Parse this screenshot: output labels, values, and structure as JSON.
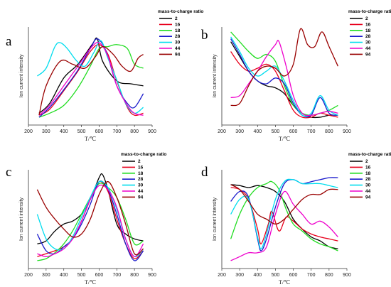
{
  "chart_data": [
    {
      "type": "line",
      "panel_label": "a",
      "xlabel": "T/℃",
      "ylabel": "Ion current intensity",
      "xlim": [
        200,
        900
      ],
      "ylim": [
        0,
        1
      ],
      "xticks": [
        200,
        300,
        400,
        500,
        600,
        700,
        800,
        900
      ],
      "legend_title": "mass-to-charge ratio",
      "series": [
        {
          "name": "2",
          "color": "#000000",
          "x": [
            260,
            320,
            400,
            480,
            560,
            590,
            620,
            700,
            780,
            850
          ],
          "y": [
            0.12,
            0.22,
            0.48,
            0.62,
            0.82,
            0.88,
            0.65,
            0.45,
            0.42,
            0.4
          ]
        },
        {
          "name": "16",
          "color": "#e8001c",
          "x": [
            260,
            320,
            400,
            480,
            550,
            600,
            650,
            700,
            760,
            800,
            850
          ],
          "y": [
            0.1,
            0.16,
            0.35,
            0.55,
            0.75,
            0.82,
            0.72,
            0.45,
            0.18,
            0.1,
            0.12
          ]
        },
        {
          "name": "18",
          "color": "#22dd22",
          "x": [
            260,
            320,
            400,
            480,
            550,
            600,
            650,
            700,
            760,
            800,
            850
          ],
          "y": [
            0.08,
            0.12,
            0.2,
            0.38,
            0.6,
            0.78,
            0.8,
            0.82,
            0.78,
            0.62,
            0.58
          ]
        },
        {
          "name": "28",
          "color": "#1a1acc",
          "x": [
            260,
            320,
            400,
            480,
            550,
            590,
            640,
            700,
            760,
            800,
            850
          ],
          "y": [
            0.08,
            0.18,
            0.36,
            0.56,
            0.78,
            0.88,
            0.75,
            0.4,
            0.22,
            0.18,
            0.32
          ]
        },
        {
          "name": "30",
          "color": "#00ddee",
          "x": [
            250,
            300,
            350,
            380,
            420,
            470,
            520,
            570,
            610,
            650,
            700,
            750,
            800,
            850
          ],
          "y": [
            0.5,
            0.58,
            0.8,
            0.84,
            0.78,
            0.66,
            0.6,
            0.74,
            0.86,
            0.68,
            0.46,
            0.22,
            0.12,
            0.18
          ]
        },
        {
          "name": "44",
          "color": "#ee00cc",
          "x": [
            260,
            320,
            400,
            480,
            550,
            600,
            650,
            700,
            760,
            800,
            850
          ],
          "y": [
            0.1,
            0.2,
            0.4,
            0.6,
            0.78,
            0.84,
            0.7,
            0.4,
            0.2,
            0.12,
            0.1
          ]
        },
        {
          "name": "94",
          "color": "#990000",
          "x": [
            260,
            300,
            380,
            450,
            520,
            580,
            620,
            680,
            730,
            780,
            820,
            850
          ],
          "y": [
            0.1,
            0.4,
            0.65,
            0.62,
            0.58,
            0.7,
            0.8,
            0.72,
            0.6,
            0.55,
            0.68,
            0.72
          ]
        }
      ]
    },
    {
      "type": "line",
      "panel_label": "b",
      "xlabel": "T/℃",
      "ylabel": "Ion current intensity",
      "xlim": [
        200,
        900
      ],
      "ylim": [
        0,
        1
      ],
      "xticks": [
        200,
        300,
        400,
        500,
        600,
        700,
        800,
        900
      ],
      "legend_title": "mass-to-charge ratio",
      "series": [
        {
          "name": "2",
          "color": "#000000",
          "x": [
            250,
            300,
            350,
            400,
            450,
            500,
            550,
            600,
            650,
            700,
            750,
            800,
            850
          ],
          "y": [
            0.85,
            0.7,
            0.55,
            0.45,
            0.4,
            0.38,
            0.32,
            0.2,
            0.12,
            0.08,
            0.08,
            0.1,
            0.1
          ]
        },
        {
          "name": "16",
          "color": "#e8001c",
          "x": [
            250,
            300,
            350,
            400,
            450,
            500,
            550,
            600,
            650,
            700,
            750,
            800,
            850
          ],
          "y": [
            0.75,
            0.62,
            0.55,
            0.58,
            0.62,
            0.55,
            0.35,
            0.15,
            0.08,
            0.08,
            0.12,
            0.1,
            0.08
          ]
        },
        {
          "name": "18",
          "color": "#22dd22",
          "x": [
            250,
            300,
            350,
            400,
            450,
            500,
            550,
            600,
            650,
            700,
            750,
            800,
            850
          ],
          "y": [
            0.95,
            0.85,
            0.75,
            0.68,
            0.72,
            0.65,
            0.4,
            0.2,
            0.12,
            0.1,
            0.12,
            0.15,
            0.2
          ]
        },
        {
          "name": "28",
          "color": "#1a1acc",
          "x": [
            250,
            300,
            350,
            400,
            450,
            500,
            550,
            600,
            650,
            700,
            750,
            800,
            850
          ],
          "y": [
            0.88,
            0.72,
            0.55,
            0.45,
            0.42,
            0.48,
            0.42,
            0.22,
            0.1,
            0.1,
            0.28,
            0.12,
            0.1
          ]
        },
        {
          "name": "30",
          "color": "#00ddee",
          "x": [
            250,
            300,
            350,
            400,
            450,
            500,
            550,
            600,
            650,
            700,
            750,
            800,
            850
          ],
          "y": [
            0.9,
            0.75,
            0.58,
            0.5,
            0.55,
            0.6,
            0.45,
            0.25,
            0.1,
            0.12,
            0.3,
            0.15,
            0.1
          ]
        },
        {
          "name": "44",
          "color": "#ee00cc",
          "x": [
            250,
            300,
            350,
            400,
            450,
            500,
            520,
            560,
            600,
            650,
            700,
            750,
            800,
            850
          ],
          "y": [
            0.28,
            0.3,
            0.42,
            0.55,
            0.7,
            0.82,
            0.85,
            0.6,
            0.3,
            0.12,
            0.1,
            0.12,
            0.14,
            0.12
          ]
        },
        {
          "name": "94",
          "color": "#990000",
          "x": [
            250,
            300,
            350,
            400,
            450,
            500,
            550,
            600,
            640,
            680,
            720,
            760,
            800,
            850
          ],
          "y": [
            0.2,
            0.22,
            0.4,
            0.55,
            0.6,
            0.58,
            0.5,
            0.62,
            0.98,
            0.82,
            0.8,
            0.95,
            0.8,
            0.6
          ]
        }
      ]
    },
    {
      "type": "line",
      "panel_label": "c",
      "xlabel": "T/℃",
      "ylabel": "Ion current intensity",
      "xlim": [
        200,
        900
      ],
      "ylim": [
        0,
        1
      ],
      "xticks": [
        200,
        300,
        400,
        500,
        600,
        700,
        800,
        900
      ],
      "legend_title": "mass-to-charge ratio",
      "series": [
        {
          "name": "2",
          "color": "#000000",
          "x": [
            250,
            300,
            350,
            400,
            450,
            500,
            550,
            600,
            620,
            650,
            700,
            750,
            800,
            850
          ],
          "y": [
            0.25,
            0.28,
            0.38,
            0.45,
            0.48,
            0.55,
            0.7,
            0.92,
            0.95,
            0.8,
            0.45,
            0.35,
            0.3,
            0.28
          ]
        },
        {
          "name": "16",
          "color": "#e8001c",
          "x": [
            250,
            300,
            350,
            400,
            450,
            500,
            550,
            600,
            650,
            700,
            750,
            800,
            850
          ],
          "y": [
            0.12,
            0.15,
            0.18,
            0.22,
            0.3,
            0.48,
            0.7,
            0.88,
            0.78,
            0.5,
            0.25,
            0.1,
            0.18
          ]
        },
        {
          "name": "18",
          "color": "#22dd22",
          "x": [
            250,
            300,
            350,
            400,
            450,
            500,
            550,
            600,
            650,
            700,
            750,
            800,
            850
          ],
          "y": [
            0.08,
            0.1,
            0.16,
            0.25,
            0.38,
            0.55,
            0.72,
            0.86,
            0.82,
            0.72,
            0.5,
            0.25,
            0.28
          ]
        },
        {
          "name": "28",
          "color": "#1a1acc",
          "x": [
            250,
            300,
            350,
            400,
            450,
            500,
            550,
            600,
            650,
            700,
            750,
            800,
            850
          ],
          "y": [
            0.35,
            0.18,
            0.15,
            0.22,
            0.3,
            0.45,
            0.65,
            0.88,
            0.8,
            0.55,
            0.25,
            0.08,
            0.18
          ]
        },
        {
          "name": "30",
          "color": "#00ddee",
          "x": [
            250,
            300,
            350,
            400,
            450,
            500,
            550,
            600,
            650,
            700,
            750,
            800,
            850
          ],
          "y": [
            0.55,
            0.3,
            0.2,
            0.2,
            0.32,
            0.52,
            0.72,
            0.88,
            0.82,
            0.6,
            0.3,
            0.12,
            0.2
          ]
        },
        {
          "name": "44",
          "color": "#ee00cc",
          "x": [
            250,
            300,
            350,
            400,
            450,
            500,
            550,
            600,
            650,
            700,
            750,
            800,
            850
          ],
          "y": [
            0.15,
            0.12,
            0.15,
            0.2,
            0.3,
            0.48,
            0.7,
            0.84,
            0.8,
            0.62,
            0.3,
            0.12,
            0.25
          ]
        },
        {
          "name": "94",
          "color": "#990000",
          "x": [
            250,
            300,
            350,
            400,
            450,
            500,
            550,
            600,
            650,
            700,
            750,
            800,
            850
          ],
          "y": [
            0.8,
            0.62,
            0.5,
            0.4,
            0.32,
            0.35,
            0.5,
            0.75,
            0.88,
            0.72,
            0.45,
            0.15,
            0.2
          ]
        }
      ]
    },
    {
      "type": "line",
      "panel_label": "d",
      "xlabel": "T/℃",
      "ylabel": "Ion current intensity",
      "xlim": [
        200,
        900
      ],
      "ylim": [
        0,
        1
      ],
      "xticks": [
        200,
        300,
        400,
        500,
        600,
        700,
        800,
        900
      ],
      "legend_title": "mass-to-charge ratio",
      "series": [
        {
          "name": "2",
          "color": "#000000",
          "x": [
            250,
            300,
            350,
            400,
            450,
            500,
            550,
            600,
            650,
            700,
            750,
            800,
            850
          ],
          "y": [
            0.85,
            0.84,
            0.82,
            0.84,
            0.82,
            0.78,
            0.68,
            0.5,
            0.4,
            0.32,
            0.28,
            0.22,
            0.2
          ]
        },
        {
          "name": "16",
          "color": "#e8001c",
          "x": [
            250,
            300,
            350,
            400,
            420,
            460,
            480,
            520,
            560,
            600,
            650,
            700,
            750,
            800,
            850
          ],
          "y": [
            0.82,
            0.8,
            0.7,
            0.4,
            0.25,
            0.45,
            0.58,
            0.38,
            0.52,
            0.48,
            0.4,
            0.35,
            0.32,
            0.3,
            0.28
          ]
        },
        {
          "name": "18",
          "color": "#22dd22",
          "x": [
            250,
            300,
            350,
            400,
            450,
            480,
            520,
            560,
            600,
            650,
            700,
            750,
            800,
            850
          ],
          "y": [
            0.3,
            0.55,
            0.72,
            0.82,
            0.86,
            0.88,
            0.8,
            0.6,
            0.45,
            0.38,
            0.3,
            0.25,
            0.22,
            0.18
          ]
        },
        {
          "name": "28",
          "color": "#1a1acc",
          "x": [
            250,
            300,
            350,
            400,
            420,
            450,
            500,
            550,
            600,
            650,
            700,
            750,
            800,
            850
          ],
          "y": [
            0.68,
            0.78,
            0.72,
            0.3,
            0.18,
            0.3,
            0.62,
            0.86,
            0.9,
            0.86,
            0.88,
            0.9,
            0.92,
            0.92
          ]
        },
        {
          "name": "30",
          "color": "#00ddee",
          "x": [
            250,
            300,
            350,
            400,
            420,
            450,
            500,
            550,
            600,
            650,
            700,
            750,
            800,
            850
          ],
          "y": [
            0.55,
            0.7,
            0.7,
            0.32,
            0.2,
            0.35,
            0.7,
            0.88,
            0.9,
            0.86,
            0.86,
            0.86,
            0.84,
            0.82
          ]
        },
        {
          "name": "44",
          "color": "#ee00cc",
          "x": [
            250,
            300,
            350,
            400,
            450,
            500,
            550,
            600,
            650,
            700,
            750,
            800,
            850
          ],
          "y": [
            0.08,
            0.12,
            0.16,
            0.16,
            0.22,
            0.55,
            0.78,
            0.65,
            0.55,
            0.45,
            0.48,
            0.42,
            0.32
          ]
        },
        {
          "name": "94",
          "color": "#990000",
          "x": [
            250,
            300,
            350,
            400,
            450,
            500,
            550,
            600,
            650,
            700,
            750,
            800,
            850
          ],
          "y": [
            0.85,
            0.8,
            0.68,
            0.55,
            0.5,
            0.45,
            0.5,
            0.6,
            0.7,
            0.75,
            0.75,
            0.8,
            0.8
          ]
        }
      ]
    }
  ]
}
